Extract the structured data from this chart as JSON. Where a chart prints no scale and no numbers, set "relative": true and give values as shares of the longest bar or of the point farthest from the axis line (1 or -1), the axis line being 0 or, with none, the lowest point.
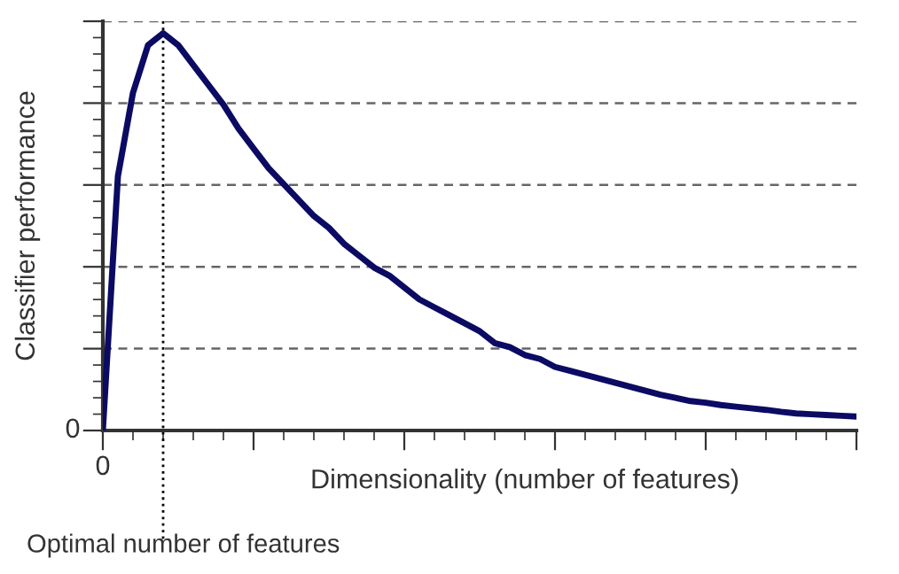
{
  "chart_data": {
    "type": "line",
    "relative": true,
    "xlabel": "Dimensionality (number of features)",
    "ylabel": "Classifier performance",
    "categories": [
      null,
      null,
      null,
      null,
      null,
      null,
      null,
      null,
      null,
      null,
      null,
      null,
      null,
      null,
      null,
      null,
      null,
      null,
      null,
      null,
      null,
      null,
      null,
      null,
      null,
      null,
      null,
      null,
      null,
      null,
      null,
      null,
      null,
      null,
      null,
      null,
      null,
      null,
      null,
      null,
      null,
      null,
      null,
      null,
      null,
      null,
      null,
      null,
      null,
      null,
      null
    ],
    "series": [
      {
        "color": "#0b0b64",
        "values": [
          0,
          0.64,
          0.85,
          0.97,
          1,
          0.97,
          0.92,
          0.87,
          0.82,
          0.76,
          0.71,
          0.66,
          0.62,
          0.58,
          0.54,
          0.51,
          0.47,
          0.44,
          0.41,
          0.39,
          0.36,
          0.33,
          0.31,
          0.29,
          0.27,
          0.25,
          0.22,
          0.21,
          0.19,
          0.18,
          0.16,
          0.15,
          0.14,
          0.13,
          0.12,
          0.11,
          0.1,
          0.09,
          0.082,
          0.074,
          0.07,
          0.064,
          0.06,
          0.056,
          0.052,
          0.047,
          0.043,
          0.041,
          0.039,
          0.037,
          0.035
        ]
      }
    ],
    "grid": "y",
    "marker": "none",
    "line_style": "solid",
    "annotations": [
      "0",
      "0",
      "Optimal number of features"
    ]
  }
}
